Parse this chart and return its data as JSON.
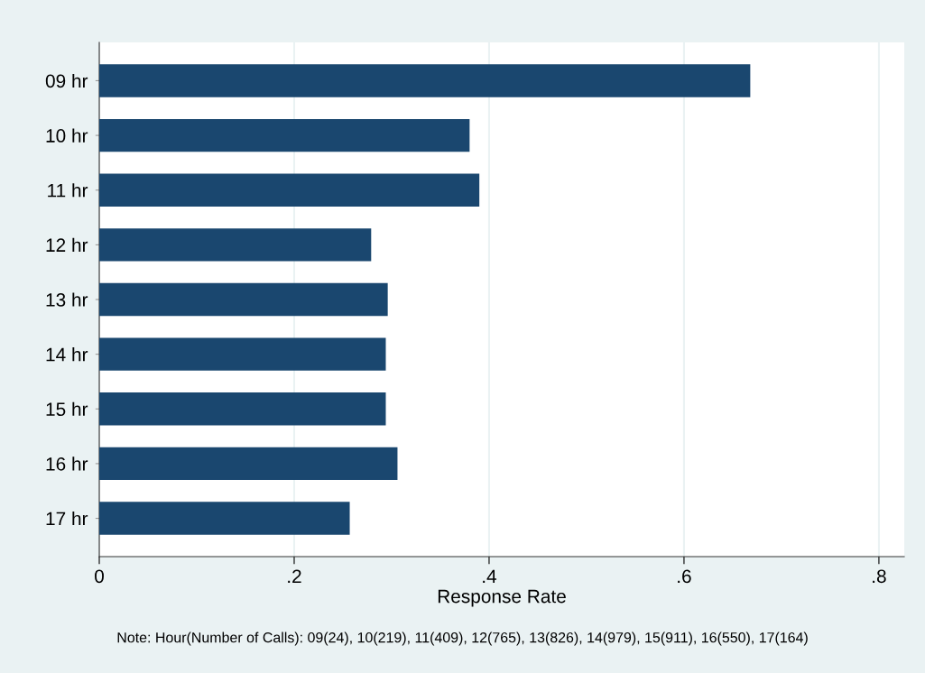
{
  "chart_data": {
    "type": "bar",
    "orientation": "horizontal",
    "xlabel": "Response Rate",
    "categories": [
      "09 hr",
      "10 hr",
      "11 hr",
      "12 hr",
      "13 hr",
      "14 hr",
      "15 hr",
      "16 hr",
      "17 hr"
    ],
    "values": [
      0.668,
      0.38,
      0.39,
      0.279,
      0.296,
      0.294,
      0.294,
      0.306,
      0.257
    ],
    "color": "#1a476f",
    "xlim": [
      0,
      0.826
    ],
    "xticks": [
      {
        "value": 0,
        "label": "0"
      },
      {
        "value": 0.2,
        "label": ".2"
      },
      {
        "value": 0.4,
        "label": ".4"
      },
      {
        "value": 0.6,
        "label": ".6"
      },
      {
        "value": 0.8,
        "label": ".8"
      }
    ],
    "grid": "x",
    "annotations": [
      "Note: Hour(Number of Calls): 09(24), 10(219), 11(409), 12(765), 13(826), 14(979), 15(911), 16(550), 17(164)"
    ]
  }
}
